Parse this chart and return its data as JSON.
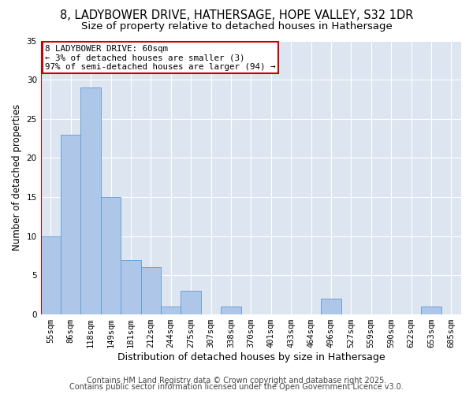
{
  "title1": "8, LADYBOWER DRIVE, HATHERSAGE, HOPE VALLEY, S32 1DR",
  "title2": "Size of property relative to detached houses in Hathersage",
  "xlabel": "Distribution of detached houses by size in Hathersage",
  "ylabel": "Number of detached properties",
  "bar_color": "#aec6e8",
  "bar_edge_color": "#5b9bd5",
  "background_color": "#dde6f0",
  "grid_color": "#ffffff",
  "annotation_box_color": "#ffffff",
  "annotation_border_color": "#cc0000",
  "annotation_line1": "8 LADYBOWER DRIVE: 60sqm",
  "annotation_line2": "← 3% of detached houses are smaller (3)",
  "annotation_line3": "97% of semi-detached houses are larger (94) →",
  "property_line_color": "#cc0000",
  "categories": [
    "55sqm",
    "86sqm",
    "118sqm",
    "149sqm",
    "181sqm",
    "212sqm",
    "244sqm",
    "275sqm",
    "307sqm",
    "338sqm",
    "370sqm",
    "401sqm",
    "433sqm",
    "464sqm",
    "496sqm",
    "527sqm",
    "559sqm",
    "590sqm",
    "622sqm",
    "653sqm",
    "685sqm"
  ],
  "values": [
    10,
    23,
    29,
    15,
    7,
    6,
    1,
    3,
    0,
    1,
    0,
    0,
    0,
    0,
    2,
    0,
    0,
    0,
    0,
    1,
    0
  ],
  "ylim": [
    0,
    35
  ],
  "yticks": [
    0,
    5,
    10,
    15,
    20,
    25,
    30,
    35
  ],
  "footer1": "Contains HM Land Registry data © Crown copyright and database right 2025.",
  "footer2": "Contains public sector information licensed under the Open Government Licence v3.0.",
  "title1_fontsize": 10.5,
  "title2_fontsize": 9.5,
  "xlabel_fontsize": 9,
  "ylabel_fontsize": 8.5,
  "tick_fontsize": 7.5,
  "footer_fontsize": 7,
  "annotation_fontsize": 7.8
}
